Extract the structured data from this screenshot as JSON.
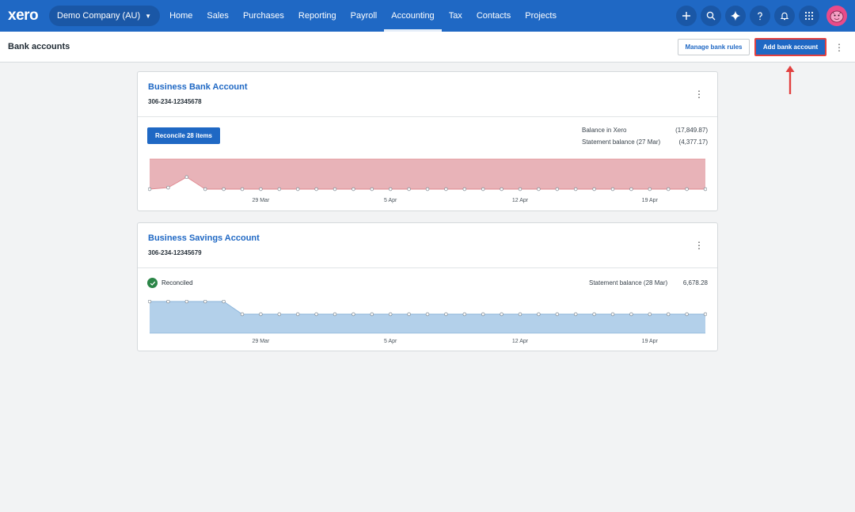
{
  "nav": {
    "logo": "xero",
    "org": "Demo Company (AU)",
    "items": [
      "Home",
      "Sales",
      "Purchases",
      "Reporting",
      "Payroll",
      "Accounting",
      "Tax",
      "Contacts",
      "Projects"
    ],
    "active": "Accounting",
    "icons": [
      "plus-icon",
      "search-icon",
      "sparkle-icon",
      "help-icon",
      "bell-icon",
      "apps-grid-icon"
    ]
  },
  "header": {
    "title": "Bank accounts",
    "manage_rules_label": "Manage bank rules",
    "add_account_label": "Add bank account"
  },
  "accounts": [
    {
      "name": "Business Bank Account",
      "number": "306-234-12345678",
      "reconcile_label": "Reconcile 28 items",
      "balances": [
        {
          "label": "Balance in Xero",
          "value": "(17,849.87)"
        },
        {
          "label": "Statement balance (27 Mar)",
          "value": "(4,377.17)"
        }
      ],
      "chart": {
        "type": "area",
        "color": "#e8b3b8",
        "line_color": "#e0888f",
        "x_ticks": [
          "29 Mar",
          "5 Apr",
          "12 Apr",
          "19 Apr"
        ],
        "values": [
          -1.0,
          -0.95,
          -0.6,
          -1.0,
          -1.0,
          -1.0,
          -1.0,
          -1.0,
          -1.0,
          -1.0,
          -1.0,
          -1.0,
          -1.0,
          -1.0,
          -1.0,
          -1.0,
          -1.0,
          -1.0,
          -1.0,
          -1.0,
          -1.0,
          -1.0,
          -1.0,
          -1.0,
          -1.0,
          -1.0,
          -1.0,
          -1.0,
          -1.0,
          -1.0,
          -1.0
        ]
      }
    },
    {
      "name": "Business Savings Account",
      "number": "306-234-12345679",
      "status": "Reconciled",
      "balances": [
        {
          "label": "Statement balance (28 Mar)",
          "value": "6,678.28"
        }
      ],
      "chart": {
        "type": "area",
        "color": "#b3d0ea",
        "line_color": "#8bb4da",
        "x_ticks": [
          "29 Mar",
          "5 Apr",
          "12 Apr",
          "19 Apr"
        ],
        "values": [
          1.0,
          1.0,
          1.0,
          1.0,
          1.0,
          0.6,
          0.6,
          0.6,
          0.6,
          0.6,
          0.6,
          0.6,
          0.6,
          0.6,
          0.6,
          0.6,
          0.6,
          0.6,
          0.6,
          0.6,
          0.6,
          0.6,
          0.6,
          0.6,
          0.6,
          0.6,
          0.6,
          0.6,
          0.6,
          0.6,
          0.6
        ]
      }
    }
  ]
}
